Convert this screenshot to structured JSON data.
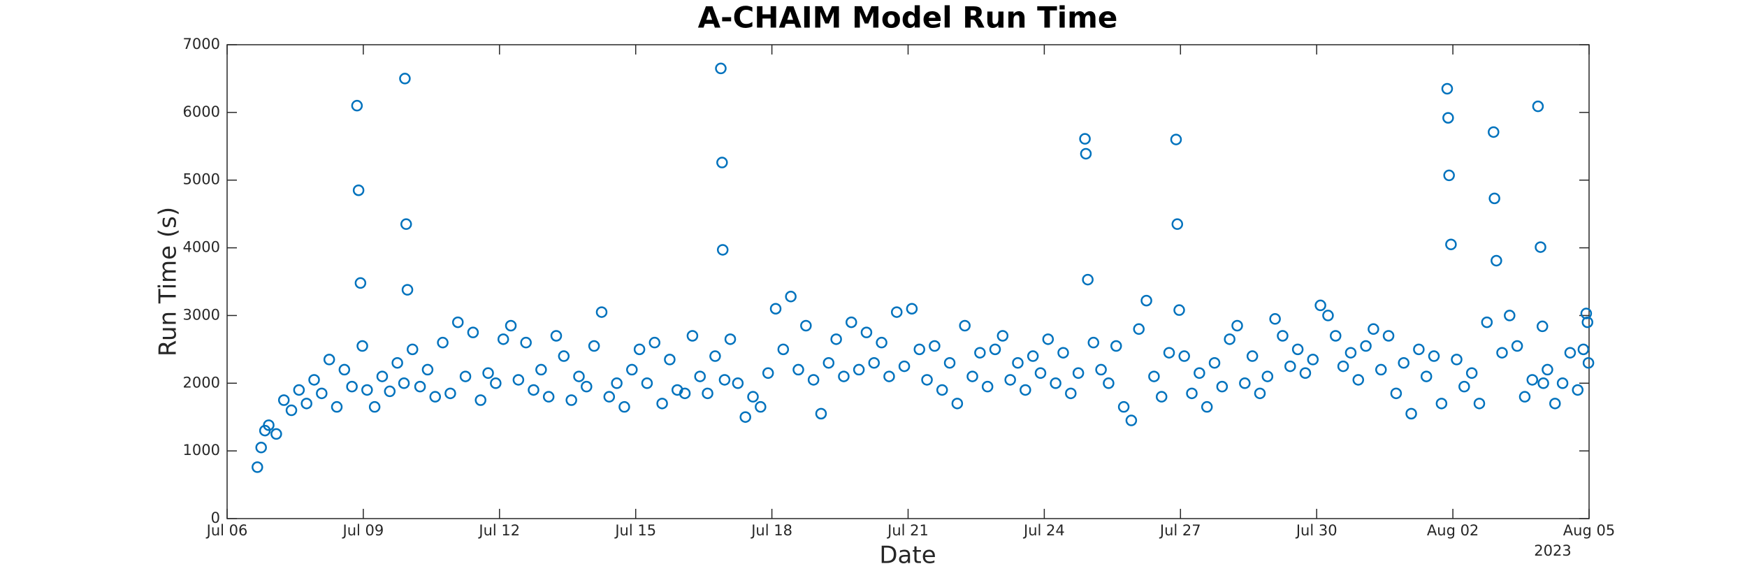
{
  "chart_data": {
    "type": "scatter",
    "title": "A-CHAIM Model Run Time",
    "x_label": "Date",
    "y_label": "Run Time (s)",
    "x_year_label": "2023",
    "color": "#0072bd",
    "xlim": [
      "2023-07-06T00:00",
      "2023-08-05T00:00"
    ],
    "xticks": [
      {
        "value": "2023-07-06T00:00",
        "label": "Jul 06"
      },
      {
        "value": "2023-07-09T00:00",
        "label": "Jul 09"
      },
      {
        "value": "2023-07-12T00:00",
        "label": "Jul 12"
      },
      {
        "value": "2023-07-15T00:00",
        "label": "Jul 15"
      },
      {
        "value": "2023-07-18T00:00",
        "label": "Jul 18"
      },
      {
        "value": "2023-07-21T00:00",
        "label": "Jul 21"
      },
      {
        "value": "2023-07-24T00:00",
        "label": "Jul 24"
      },
      {
        "value": "2023-07-27T00:00",
        "label": "Jul 27"
      },
      {
        "value": "2023-07-30T00:00",
        "label": "Jul 30"
      },
      {
        "value": "2023-08-02T00:00",
        "label": "Aug 02"
      },
      {
        "value": "2023-08-05T00:00",
        "label": "Aug 05"
      }
    ],
    "ylim": [
      0,
      7000
    ],
    "yticks": [
      0,
      1000,
      2000,
      3000,
      4000,
      5000,
      6000,
      7000
    ],
    "x": [
      "2023-07-06T16:00",
      "2023-07-06T18:00",
      "2023-07-06T20:00",
      "2023-07-06T22:00",
      "2023-07-07T02:00",
      "2023-07-07T06:00",
      "2023-07-07T10:00",
      "2023-07-07T14:00",
      "2023-07-07T18:00",
      "2023-07-07T22:00",
      "2023-07-08T02:00",
      "2023-07-08T06:00",
      "2023-07-08T10:00",
      "2023-07-08T14:00",
      "2023-07-08T18:00",
      "2023-07-08T20:40",
      "2023-07-08T21:30",
      "2023-07-08T22:30",
      "2023-07-08T23:30",
      "2023-07-09T02:00",
      "2023-07-09T06:00",
      "2023-07-09T10:00",
      "2023-07-09T14:00",
      "2023-07-09T18:00",
      "2023-07-09T21:30",
      "2023-07-09T22:00",
      "2023-07-09T22:40",
      "2023-07-09T23:20",
      "2023-07-10T02:00",
      "2023-07-10T06:00",
      "2023-07-10T10:00",
      "2023-07-10T14:00",
      "2023-07-10T18:00",
      "2023-07-10T22:00",
      "2023-07-11T02:00",
      "2023-07-11T06:00",
      "2023-07-11T10:00",
      "2023-07-11T14:00",
      "2023-07-11T18:00",
      "2023-07-11T22:00",
      "2023-07-12T02:00",
      "2023-07-12T06:00",
      "2023-07-12T10:00",
      "2023-07-12T14:00",
      "2023-07-12T18:00",
      "2023-07-12T22:00",
      "2023-07-13T02:00",
      "2023-07-13T06:00",
      "2023-07-13T10:00",
      "2023-07-13T14:00",
      "2023-07-13T18:00",
      "2023-07-13T22:00",
      "2023-07-14T02:00",
      "2023-07-14T06:00",
      "2023-07-14T10:00",
      "2023-07-14T14:00",
      "2023-07-14T18:00",
      "2023-07-14T22:00",
      "2023-07-15T02:00",
      "2023-07-15T06:00",
      "2023-07-15T10:00",
      "2023-07-15T14:00",
      "2023-07-15T18:00",
      "2023-07-15T22:00",
      "2023-07-16T02:00",
      "2023-07-16T06:00",
      "2023-07-16T10:00",
      "2023-07-16T14:00",
      "2023-07-16T18:00",
      "2023-07-16T21:00",
      "2023-07-16T21:40",
      "2023-07-16T22:00",
      "2023-07-16T23:00",
      "2023-07-17T02:00",
      "2023-07-17T06:00",
      "2023-07-17T10:00",
      "2023-07-17T14:00",
      "2023-07-17T18:00",
      "2023-07-17T22:00",
      "2023-07-18T02:00",
      "2023-07-18T06:00",
      "2023-07-18T10:00",
      "2023-07-18T14:00",
      "2023-07-18T18:00",
      "2023-07-18T22:00",
      "2023-07-19T02:00",
      "2023-07-19T06:00",
      "2023-07-19T10:00",
      "2023-07-19T14:00",
      "2023-07-19T18:00",
      "2023-07-19T22:00",
      "2023-07-20T02:00",
      "2023-07-20T06:00",
      "2023-07-20T10:00",
      "2023-07-20T14:00",
      "2023-07-20T18:00",
      "2023-07-20T22:00",
      "2023-07-21T02:00",
      "2023-07-21T06:00",
      "2023-07-21T10:00",
      "2023-07-21T14:00",
      "2023-07-21T18:00",
      "2023-07-21T22:00",
      "2023-07-22T02:00",
      "2023-07-22T06:00",
      "2023-07-22T10:00",
      "2023-07-22T14:00",
      "2023-07-22T18:00",
      "2023-07-22T22:00",
      "2023-07-23T02:00",
      "2023-07-23T06:00",
      "2023-07-23T10:00",
      "2023-07-23T14:00",
      "2023-07-23T18:00",
      "2023-07-23T22:00",
      "2023-07-24T02:00",
      "2023-07-24T06:00",
      "2023-07-24T10:00",
      "2023-07-24T14:00",
      "2023-07-24T18:00",
      "2023-07-24T21:30",
      "2023-07-24T22:00",
      "2023-07-24T23:00",
      "2023-07-25T02:00",
      "2023-07-25T06:00",
      "2023-07-25T10:00",
      "2023-07-25T14:00",
      "2023-07-25T18:00",
      "2023-07-25T22:00",
      "2023-07-26T02:00",
      "2023-07-26T06:00",
      "2023-07-26T10:00",
      "2023-07-26T14:00",
      "2023-07-26T18:00",
      "2023-07-26T21:40",
      "2023-07-26T22:20",
      "2023-07-26T23:20",
      "2023-07-27T02:00",
      "2023-07-27T06:00",
      "2023-07-27T10:00",
      "2023-07-27T14:00",
      "2023-07-27T18:00",
      "2023-07-27T22:00",
      "2023-07-28T02:00",
      "2023-07-28T06:00",
      "2023-07-28T10:00",
      "2023-07-28T14:00",
      "2023-07-28T18:00",
      "2023-07-28T22:00",
      "2023-07-29T02:00",
      "2023-07-29T06:00",
      "2023-07-29T10:00",
      "2023-07-29T14:00",
      "2023-07-29T18:00",
      "2023-07-29T22:00",
      "2023-07-30T02:00",
      "2023-07-30T06:00",
      "2023-07-30T10:00",
      "2023-07-30T14:00",
      "2023-07-30T18:00",
      "2023-07-30T22:00",
      "2023-07-31T02:00",
      "2023-07-31T06:00",
      "2023-07-31T10:00",
      "2023-07-31T14:00",
      "2023-07-31T18:00",
      "2023-07-31T22:00",
      "2023-08-01T02:00",
      "2023-08-01T06:00",
      "2023-08-01T10:00",
      "2023-08-01T14:00",
      "2023-08-01T18:00",
      "2023-08-01T21:00",
      "2023-08-01T21:30",
      "2023-08-01T22:00",
      "2023-08-01T23:00",
      "2023-08-02T02:00",
      "2023-08-02T06:00",
      "2023-08-02T10:00",
      "2023-08-02T14:00",
      "2023-08-02T18:00",
      "2023-08-02T21:30",
      "2023-08-02T22:00",
      "2023-08-02T23:00",
      "2023-08-03T02:00",
      "2023-08-03T06:00",
      "2023-08-03T10:00",
      "2023-08-03T14:00",
      "2023-08-03T18:00",
      "2023-08-03T21:00",
      "2023-08-03T22:20",
      "2023-08-03T23:20",
      "2023-08-03T23:50",
      "2023-08-04T02:00",
      "2023-08-04T06:00",
      "2023-08-04T10:00",
      "2023-08-04T14:00",
      "2023-08-04T18:00",
      "2023-08-04T21:00",
      "2023-08-04T22:30",
      "2023-08-04T23:10",
      "2023-08-04T23:40"
    ],
    "values": [
      760,
      1050,
      1300,
      1380,
      1250,
      1750,
      1600,
      1900,
      1700,
      2050,
      1850,
      2350,
      1650,
      2200,
      1950,
      6100,
      4850,
      3480,
      2550,
      1900,
      1650,
      2100,
      1880,
      2300,
      2000,
      6500,
      4350,
      3380,
      2500,
      1950,
      2200,
      1800,
      2600,
      1850,
      2900,
      2100,
      2750,
      1750,
      2150,
      2000,
      2650,
      2850,
      2050,
      2600,
      1900,
      2200,
      1800,
      2700,
      2400,
      1750,
      2100,
      1950,
      2550,
      3050,
      1800,
      2000,
      1650,
      2200,
      2500,
      2000,
      2600,
      1700,
      2350,
      1900,
      1850,
      2700,
      2100,
      1850,
      2400,
      6650,
      5260,
      3970,
      2050,
      2650,
      2000,
      1500,
      1800,
      1650,
      2150,
      3100,
      2500,
      3280,
      2200,
      2850,
      2050,
      1550,
      2300,
      2650,
      2100,
      2900,
      2200,
      2750,
      2300,
      2600,
      2100,
      3050,
      2250,
      3100,
      2500,
      2050,
      2550,
      1900,
      2300,
      1700,
      2850,
      2100,
      2450,
      1950,
      2500,
      2700,
      2050,
      2300,
      1900,
      2400,
      2150,
      2650,
      2000,
      2450,
      1850,
      2150,
      5610,
      5390,
      3530,
      2600,
      2200,
      2000,
      2550,
      1650,
      1450,
      2800,
      3220,
      2100,
      1800,
      2450,
      5600,
      4350,
      3080,
      2400,
      1850,
      2150,
      1650,
      2300,
      1950,
      2650,
      2850,
      2000,
      2400,
      1850,
      2100,
      2950,
      2700,
      2250,
      2500,
      2150,
      2350,
      3150,
      3000,
      2700,
      2250,
      2450,
      2050,
      2550,
      2800,
      2200,
      2700,
      1850,
      2300,
      1550,
      2500,
      2100,
      2400,
      1700,
      6350,
      5920,
      5070,
      4050,
      2350,
      1950,
      2150,
      1700,
      2900,
      5710,
      4730,
      3810,
      2450,
      3000,
      2550,
      1800,
      2050,
      6090,
      4010,
      2840,
      2000,
      2200,
      1700,
      2000,
      2450,
      1900,
      2500,
      3030,
      2900,
      2300
    ]
  }
}
